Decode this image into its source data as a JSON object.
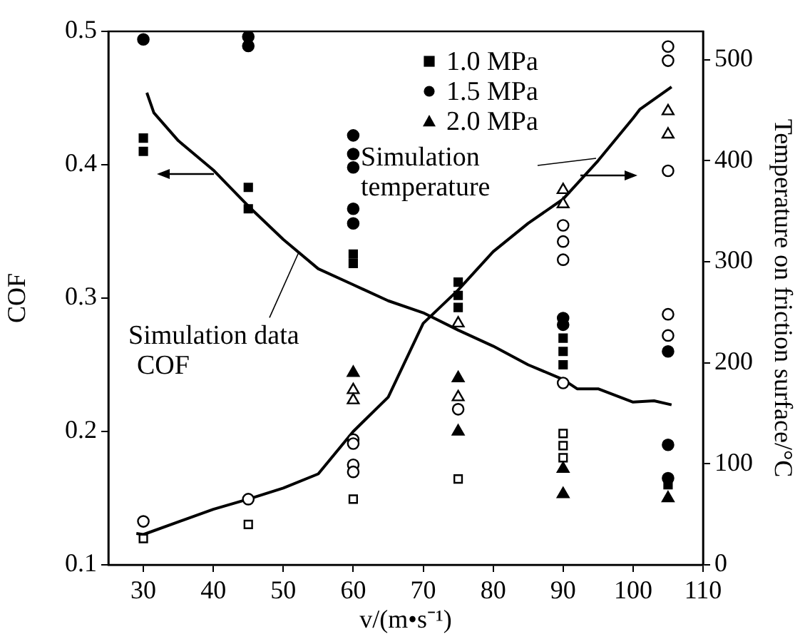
{
  "chart_data": {
    "type": "scatter",
    "xlabel": "v/(m•s⁻¹)",
    "ylabel": "COF",
    "y2label": "Temperature on friction surface/°C",
    "xlim": [
      25,
      110
    ],
    "xticks": [
      30,
      40,
      50,
      60,
      70,
      80,
      90,
      100,
      110
    ],
    "ylim": [
      0.1,
      0.5
    ],
    "yticks": [
      0.1,
      0.2,
      0.3,
      0.4,
      0.5
    ],
    "y2lim": [
      0,
      528
    ],
    "y2ticks": [
      0,
      100,
      200,
      300,
      400,
      500
    ],
    "grid": false,
    "legend": "top right",
    "annotations": [
      {
        "text": "Simulation data\nCOF",
        "x": 52,
        "y": 0.335
      },
      "Simulation\ntemperature"
    ],
    "series": [
      {
        "name": "1.0 MPa",
        "type": "scatter",
        "marker": "square",
        "color": "#000000",
        "x": [
          30,
          30,
          45,
          45,
          60,
          60,
          75,
          75,
          75,
          90,
          90,
          90,
          105
        ],
        "values": [
          0.42,
          0.41,
          0.383,
          0.367,
          0.333,
          0.326,
          0.312,
          0.302,
          0.293,
          0.27,
          0.26,
          0.25,
          0.16
        ]
      },
      {
        "name": "1.5 MPa",
        "type": "scatter",
        "marker": "circle",
        "color": "#000000",
        "x": [
          30,
          45,
          45,
          60,
          60,
          60,
          60,
          60,
          90,
          90,
          105,
          105,
          105
        ],
        "values": [
          0.494,
          0.496,
          0.489,
          0.422,
          0.408,
          0.398,
          0.367,
          0.356,
          0.285,
          0.28,
          0.26,
          0.19,
          0.165
        ]
      },
      {
        "name": "2.0 MPa",
        "type": "scatter",
        "marker": "triangle",
        "color": "#000000",
        "x": [
          60,
          75,
          75,
          90,
          90,
          105
        ],
        "values": [
          0.244,
          0.24,
          0.2,
          0.172,
          0.153,
          0.15
        ]
      },
      {
        "type": "scatter",
        "marker": "square",
        "color": "#000000",
        "axis": "y2",
        "x": [
          30,
          45,
          60,
          75,
          90,
          90,
          90
        ],
        "values": [
          26,
          40,
          65,
          85,
          130,
          118,
          106
        ]
      },
      {
        "type": "scatter",
        "marker": "circle",
        "color": "#000000",
        "axis": "y2",
        "x": [
          30,
          45,
          60,
          60,
          60,
          60,
          75,
          90,
          90,
          90,
          90,
          105,
          105,
          105,
          105,
          105
        ],
        "values": [
          43,
          65,
          124,
          120,
          99,
          92,
          154,
          336,
          320,
          302,
          180,
          513,
          499,
          390,
          248,
          227
        ]
      },
      {
        "type": "scatter",
        "marker": "triangle",
        "color": "#000000",
        "axis": "y2",
        "x": [
          60,
          60,
          75,
          75,
          90,
          90,
          105,
          105
        ],
        "values": [
          173,
          163,
          239,
          166,
          371,
          357,
          449,
          426
        ]
      },
      {
        "type": "line",
        "marker": "none",
        "line_style": "solid",
        "color": "#000000",
        "x": [
          30.5,
          31.5,
          35,
          40,
          45,
          50,
          55,
          60,
          65,
          70,
          75,
          80,
          85,
          90,
          92,
          95,
          100,
          103,
          105.5
        ],
        "values": [
          0.454,
          0.439,
          0.418,
          0.396,
          0.369,
          0.344,
          0.322,
          0.31,
          0.298,
          0.289,
          0.276,
          0.264,
          0.25,
          0.239,
          0.232,
          0.232,
          0.222,
          0.223,
          0.22
        ]
      },
      {
        "type": "line",
        "marker": "none",
        "line_style": "solid",
        "color": "#000000",
        "axis": "y2",
        "x": [
          29,
          30,
          40,
          45,
          50,
          55,
          60,
          65,
          70,
          75,
          80,
          85,
          90,
          95,
          100,
          101,
          105.5
        ],
        "values": [
          31,
          30,
          55,
          65,
          76,
          90,
          132,
          166,
          239,
          272,
          310,
          338,
          362,
          400,
          442,
          451,
          473
        ]
      }
    ]
  }
}
